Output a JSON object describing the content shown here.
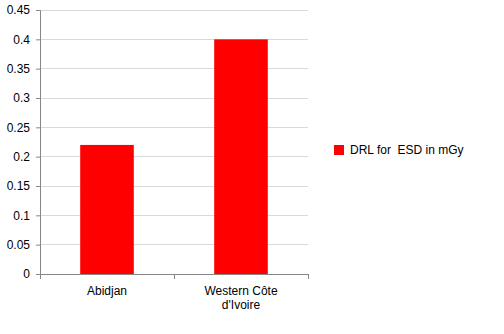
{
  "chart_data": {
    "type": "bar",
    "categories": [
      "Abidjan",
      "Western Côte d'Ivoire"
    ],
    "series": [
      {
        "name": "DRL for  ESD in mGy",
        "color": "#ff0000",
        "values": [
          0.22,
          0.4
        ]
      }
    ],
    "ylim": [
      0,
      0.45
    ],
    "yticks": [
      0,
      0.05,
      0.1,
      0.15,
      0.2,
      0.25,
      0.3,
      0.35,
      0.4,
      0.45
    ],
    "grid": true,
    "legend": "right"
  }
}
